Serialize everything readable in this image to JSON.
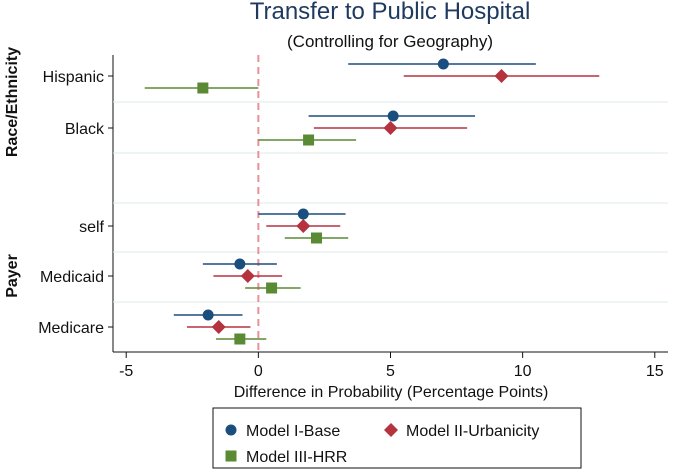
{
  "chart_data": {
    "type": "forest",
    "title": "Transfer to Public Hospital",
    "subtitle": "(Controlling for Geography)",
    "xlabel": "Difference in Probability (Percentage Points)",
    "xlim": [
      -5.5,
      15.5
    ],
    "xticks": [
      -5,
      0,
      5,
      10,
      15
    ],
    "reference_line": 0,
    "groups": [
      {
        "label": "Race/Ethnicity",
        "rows": [
          "Hispanic",
          "Black"
        ]
      },
      {
        "label": "Payer",
        "rows": [
          "self",
          "Medicaid",
          "Medicare"
        ]
      }
    ],
    "rows": [
      "Hispanic",
      "Black",
      "self",
      "Medicaid",
      "Medicare"
    ],
    "series": [
      {
        "name": "Model I-Base",
        "color": "#1a4e7e",
        "marker": "circle",
        "points": [
          {
            "row": "Hispanic",
            "estimate": 7.0,
            "lower": 3.4,
            "upper": 10.5
          },
          {
            "row": "Black",
            "estimate": 5.1,
            "lower": 1.9,
            "upper": 8.2
          },
          {
            "row": "self",
            "estimate": 1.7,
            "lower": 0.0,
            "upper": 3.3
          },
          {
            "row": "Medicaid",
            "estimate": -0.7,
            "lower": -2.1,
            "upper": 0.7
          },
          {
            "row": "Medicare",
            "estimate": -1.9,
            "lower": -3.2,
            "upper": -0.6
          }
        ]
      },
      {
        "name": "Model II-Urbanicity",
        "color": "#b5323f",
        "marker": "diamond",
        "points": [
          {
            "row": "Hispanic",
            "estimate": 9.2,
            "lower": 5.5,
            "upper": 12.9
          },
          {
            "row": "Black",
            "estimate": 5.0,
            "lower": 2.1,
            "upper": 7.9
          },
          {
            "row": "self",
            "estimate": 1.7,
            "lower": 0.3,
            "upper": 3.1
          },
          {
            "row": "Medicaid",
            "estimate": -0.4,
            "lower": -1.7,
            "upper": 0.9
          },
          {
            "row": "Medicare",
            "estimate": -1.5,
            "lower": -2.7,
            "upper": -0.3
          }
        ]
      },
      {
        "name": "Model III-HRR",
        "color": "#5a8a33",
        "marker": "square",
        "points": [
          {
            "row": "Hispanic",
            "estimate": -2.1,
            "lower": -4.3,
            "upper": 0.0
          },
          {
            "row": "Black",
            "estimate": 1.9,
            "lower": 0.0,
            "upper": 3.7
          },
          {
            "row": "self",
            "estimate": 2.2,
            "lower": 1.0,
            "upper": 3.4
          },
          {
            "row": "Medicaid",
            "estimate": 0.5,
            "lower": -0.5,
            "upper": 1.6
          },
          {
            "row": "Medicare",
            "estimate": -0.7,
            "lower": -1.6,
            "upper": 0.3
          }
        ]
      }
    ],
    "legend": {
      "position": "bottom",
      "entries": [
        "Model I-Base",
        "Model II-Urbanicity",
        "Model III-HRR"
      ]
    }
  }
}
